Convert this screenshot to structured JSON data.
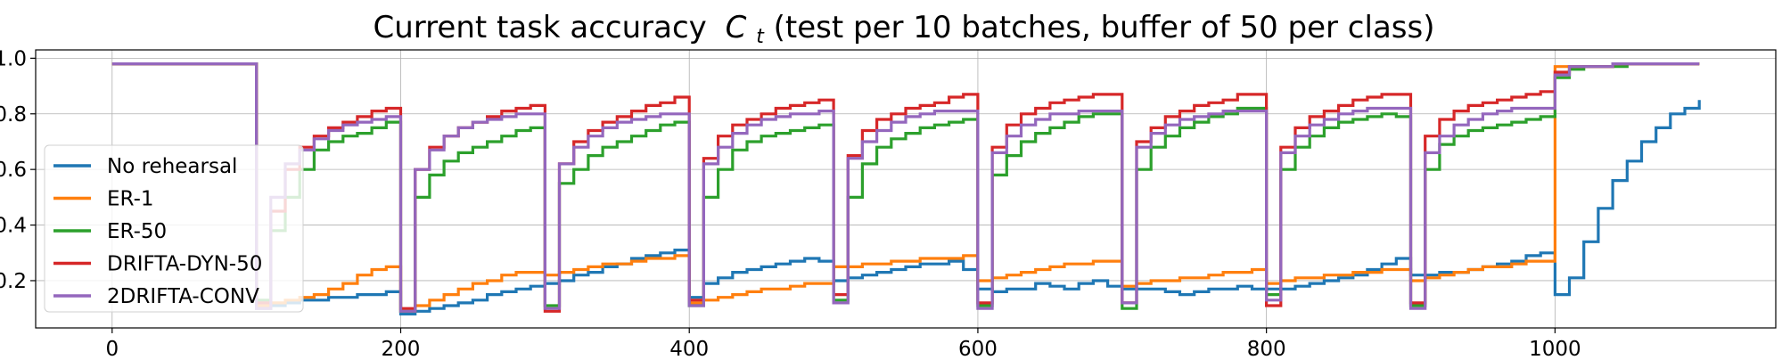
{
  "chart_data": {
    "type": "line",
    "title": "Current task accuracy",
    "title_var": "C",
    "title_sub": "t",
    "title_suffix": " (test per 10 batches, buffer of 50 per class)",
    "xlabel": "",
    "ylabel": "",
    "xlim": [
      -53,
      1153
    ],
    "ylim": [
      0.03,
      1.03
    ],
    "xticks": [
      "0",
      "200",
      "400",
      "600",
      "800",
      "1000"
    ],
    "xtick_values": [
      0,
      200,
      400,
      600,
      800,
      1000
    ],
    "yticks": [
      "0.2",
      "0.4",
      "0.6",
      "0.8",
      "1.0"
    ],
    "ytick_values": [
      0.2,
      0.4,
      0.6,
      0.8,
      1.0
    ],
    "grid": true,
    "legend": "center-left",
    "series": [
      {
        "name": "No rehearsal",
        "color": "#1f77b4",
        "step": 10,
        "values": [
          0.98,
          0.98,
          0.98,
          0.98,
          0.98,
          0.98,
          0.98,
          0.98,
          0.98,
          0.98,
          0.1,
          0.11,
          0.12,
          0.13,
          0.13,
          0.14,
          0.14,
          0.15,
          0.15,
          0.16,
          0.08,
          0.09,
          0.1,
          0.11,
          0.12,
          0.13,
          0.15,
          0.16,
          0.17,
          0.18,
          0.19,
          0.2,
          0.22,
          0.23,
          0.25,
          0.26,
          0.28,
          0.29,
          0.3,
          0.31,
          0.14,
          0.19,
          0.21,
          0.23,
          0.24,
          0.25,
          0.26,
          0.27,
          0.28,
          0.27,
          0.2,
          0.21,
          0.22,
          0.23,
          0.24,
          0.25,
          0.26,
          0.26,
          0.27,
          0.24,
          0.17,
          0.16,
          0.17,
          0.17,
          0.19,
          0.18,
          0.17,
          0.19,
          0.2,
          0.18,
          0.17,
          0.17,
          0.17,
          0.16,
          0.15,
          0.16,
          0.17,
          0.17,
          0.18,
          0.17,
          0.17,
          0.17,
          0.18,
          0.19,
          0.2,
          0.21,
          0.22,
          0.24,
          0.26,
          0.28,
          0.22,
          0.22,
          0.23,
          0.23,
          0.24,
          0.25,
          0.26,
          0.27,
          0.29,
          0.3,
          0.15,
          0.21,
          0.34,
          0.46,
          0.56,
          0.63,
          0.7,
          0.75,
          0.8,
          0.82,
          0.85
        ]
      },
      {
        "name": "ER-1",
        "color": "#ff7f0e",
        "step": 10,
        "values": [
          0.98,
          0.98,
          0.98,
          0.98,
          0.98,
          0.98,
          0.98,
          0.98,
          0.98,
          0.98,
          0.11,
          0.12,
          0.13,
          0.14,
          0.15,
          0.17,
          0.19,
          0.22,
          0.24,
          0.25,
          0.09,
          0.11,
          0.13,
          0.15,
          0.17,
          0.19,
          0.2,
          0.22,
          0.23,
          0.23,
          0.22,
          0.23,
          0.24,
          0.25,
          0.26,
          0.26,
          0.27,
          0.28,
          0.28,
          0.29,
          0.12,
          0.13,
          0.14,
          0.15,
          0.16,
          0.17,
          0.17,
          0.18,
          0.19,
          0.19,
          0.25,
          0.25,
          0.26,
          0.26,
          0.27,
          0.27,
          0.28,
          0.28,
          0.28,
          0.29,
          0.2,
          0.21,
          0.22,
          0.23,
          0.24,
          0.25,
          0.26,
          0.26,
          0.27,
          0.27,
          0.18,
          0.19,
          0.2,
          0.2,
          0.21,
          0.21,
          0.22,
          0.23,
          0.23,
          0.24,
          0.19,
          0.2,
          0.21,
          0.21,
          0.22,
          0.22,
          0.23,
          0.23,
          0.24,
          0.24,
          0.2,
          0.21,
          0.22,
          0.23,
          0.24,
          0.25,
          0.25,
          0.26,
          0.27,
          0.27,
          0.97,
          0.97,
          0.97,
          0.97,
          0.98,
          0.98,
          0.98,
          0.98,
          0.98,
          0.98,
          0.98
        ]
      },
      {
        "name": "ER-50",
        "color": "#2ca02c",
        "step": 10,
        "values": [
          0.98,
          0.98,
          0.98,
          0.98,
          0.98,
          0.98,
          0.98,
          0.98,
          0.98,
          0.98,
          0.13,
          0.38,
          0.5,
          0.6,
          0.67,
          0.7,
          0.72,
          0.73,
          0.75,
          0.77,
          0.09,
          0.5,
          0.58,
          0.63,
          0.66,
          0.68,
          0.7,
          0.72,
          0.74,
          0.75,
          0.11,
          0.55,
          0.6,
          0.65,
          0.68,
          0.7,
          0.72,
          0.74,
          0.76,
          0.77,
          0.11,
          0.5,
          0.6,
          0.67,
          0.7,
          0.72,
          0.73,
          0.74,
          0.75,
          0.76,
          0.13,
          0.5,
          0.62,
          0.68,
          0.71,
          0.73,
          0.75,
          0.76,
          0.77,
          0.78,
          0.11,
          0.58,
          0.65,
          0.7,
          0.73,
          0.75,
          0.77,
          0.79,
          0.8,
          0.8,
          0.1,
          0.6,
          0.68,
          0.72,
          0.75,
          0.77,
          0.79,
          0.8,
          0.82,
          0.82,
          0.15,
          0.6,
          0.68,
          0.72,
          0.75,
          0.77,
          0.78,
          0.79,
          0.8,
          0.79,
          0.11,
          0.6,
          0.69,
          0.72,
          0.74,
          0.75,
          0.76,
          0.77,
          0.78,
          0.79,
          0.93,
          0.96,
          0.97,
          0.97,
          0.97,
          0.98,
          0.98,
          0.98,
          0.98,
          0.98,
          0.98
        ]
      },
      {
        "name": "DRIFTA-DYN-50",
        "color": "#d62728",
        "step": 10,
        "values": [
          0.98,
          0.98,
          0.98,
          0.98,
          0.98,
          0.98,
          0.98,
          0.98,
          0.98,
          0.98,
          0.12,
          0.45,
          0.6,
          0.68,
          0.72,
          0.75,
          0.77,
          0.79,
          0.81,
          0.82,
          0.1,
          0.6,
          0.68,
          0.72,
          0.75,
          0.77,
          0.79,
          0.81,
          0.82,
          0.83,
          0.09,
          0.62,
          0.7,
          0.74,
          0.77,
          0.79,
          0.81,
          0.83,
          0.84,
          0.86,
          0.13,
          0.64,
          0.72,
          0.76,
          0.78,
          0.8,
          0.82,
          0.83,
          0.84,
          0.85,
          0.15,
          0.65,
          0.74,
          0.78,
          0.8,
          0.82,
          0.83,
          0.84,
          0.86,
          0.87,
          0.12,
          0.68,
          0.76,
          0.8,
          0.82,
          0.84,
          0.85,
          0.86,
          0.87,
          0.87,
          0.12,
          0.7,
          0.75,
          0.79,
          0.81,
          0.83,
          0.84,
          0.85,
          0.87,
          0.87,
          0.11,
          0.68,
          0.75,
          0.79,
          0.81,
          0.83,
          0.85,
          0.86,
          0.87,
          0.87,
          0.12,
          0.72,
          0.78,
          0.81,
          0.83,
          0.84,
          0.85,
          0.86,
          0.87,
          0.88,
          0.95,
          0.97,
          0.97,
          0.97,
          0.98,
          0.98,
          0.98,
          0.98,
          0.98,
          0.98,
          0.98
        ]
      },
      {
        "name": "2DRIFTA-CONV",
        "color": "#9467bd",
        "step": 10,
        "values": [
          0.98,
          0.98,
          0.98,
          0.98,
          0.98,
          0.98,
          0.98,
          0.98,
          0.98,
          0.98,
          0.1,
          0.5,
          0.62,
          0.67,
          0.71,
          0.74,
          0.76,
          0.77,
          0.78,
          0.79,
          0.09,
          0.6,
          0.67,
          0.72,
          0.75,
          0.77,
          0.78,
          0.79,
          0.8,
          0.8,
          0.1,
          0.62,
          0.68,
          0.72,
          0.75,
          0.77,
          0.78,
          0.79,
          0.8,
          0.8,
          0.11,
          0.62,
          0.68,
          0.73,
          0.76,
          0.78,
          0.79,
          0.8,
          0.8,
          0.81,
          0.12,
          0.64,
          0.7,
          0.74,
          0.77,
          0.79,
          0.8,
          0.81,
          0.81,
          0.81,
          0.1,
          0.66,
          0.72,
          0.76,
          0.78,
          0.8,
          0.8,
          0.81,
          0.81,
          0.81,
          0.12,
          0.68,
          0.73,
          0.76,
          0.78,
          0.79,
          0.8,
          0.81,
          0.81,
          0.81,
          0.13,
          0.66,
          0.72,
          0.76,
          0.78,
          0.8,
          0.81,
          0.82,
          0.82,
          0.82,
          0.1,
          0.66,
          0.72,
          0.76,
          0.78,
          0.8,
          0.81,
          0.82,
          0.82,
          0.82,
          0.94,
          0.97,
          0.97,
          0.97,
          0.98,
          0.98,
          0.98,
          0.98,
          0.98,
          0.98,
          0.98
        ]
      }
    ]
  }
}
